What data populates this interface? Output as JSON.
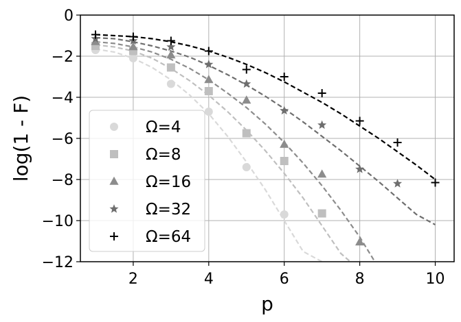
{
  "chart_data": {
    "type": "scatter",
    "xlabel": "p",
    "ylabel": "log(1 - F)",
    "xlim": [
      0.6,
      10.5
    ],
    "ylim": [
      -12,
      0
    ],
    "xticks": [
      2,
      4,
      6,
      8,
      10
    ],
    "yticks": [
      0,
      -2,
      -4,
      -6,
      -8,
      -10,
      -12
    ],
    "xtick_labels": [
      "2",
      "4",
      "6",
      "8",
      "10"
    ],
    "ytick_labels": [
      "0",
      "−2",
      "−4",
      "−6",
      "−8",
      "−10",
      "−12"
    ],
    "grid": true,
    "legend_position": "lower-left",
    "series": [
      {
        "name": "Ω=4",
        "marker": "circle",
        "color": "#d9d9d9",
        "x": [
          1,
          2,
          3,
          4,
          5,
          6
        ],
        "y": [
          -1.7,
          -2.1,
          -3.35,
          -4.7,
          -7.4,
          -9.7
        ],
        "fit": {
          "x": [
            1,
            1.5,
            2,
            2.5,
            3,
            3.5,
            4,
            4.5,
            5,
            5.5,
            6,
            6.5,
            7
          ],
          "y": [
            -1.65,
            -1.8,
            -2.1,
            -2.55,
            -3.15,
            -3.9,
            -4.8,
            -5.9,
            -7.15,
            -8.5,
            -10.0,
            -11.5,
            -12.0
          ]
        }
      },
      {
        "name": "Ω=8",
        "marker": "square",
        "color": "#bfbfbf",
        "x": [
          1,
          2,
          3,
          4,
          5,
          6,
          7
        ],
        "y": [
          -1.5,
          -1.75,
          -2.55,
          -3.7,
          -5.75,
          -7.1,
          -9.65
        ],
        "fit": {
          "x": [
            1,
            1.5,
            2,
            2.5,
            3,
            3.5,
            4,
            4.5,
            5,
            5.5,
            6,
            6.5,
            7,
            7.5,
            7.75
          ],
          "y": [
            -1.45,
            -1.55,
            -1.75,
            -2.1,
            -2.6,
            -3.2,
            -3.9,
            -4.7,
            -5.6,
            -6.6,
            -7.7,
            -8.9,
            -10.25,
            -11.6,
            -12.0
          ]
        }
      },
      {
        "name": "Ω=16",
        "marker": "triangle",
        "color": "#8c8c8c",
        "x": [
          1,
          2,
          3,
          4,
          5,
          6,
          7,
          8
        ],
        "y": [
          -1.3,
          -1.55,
          -1.95,
          -3.15,
          -4.15,
          -6.3,
          -7.75,
          -11.05
        ],
        "fit": {
          "x": [
            1,
            1.5,
            2,
            2.5,
            3,
            3.5,
            4,
            4.5,
            5,
            5.5,
            6,
            6.5,
            7,
            7.5,
            8,
            8.4
          ],
          "y": [
            -1.3,
            -1.38,
            -1.55,
            -1.8,
            -2.15,
            -2.6,
            -3.15,
            -3.8,
            -4.5,
            -5.3,
            -6.2,
            -7.2,
            -8.3,
            -9.5,
            -10.8,
            -12.0
          ]
        }
      },
      {
        "name": "Ω=32",
        "marker": "star",
        "color": "#6e6e6e",
        "x": [
          1,
          2,
          3,
          4,
          5,
          6,
          7,
          8,
          9
        ],
        "y": [
          -1.15,
          -1.25,
          -1.55,
          -2.4,
          -3.35,
          -4.65,
          -5.35,
          -7.5,
          -8.2
        ],
        "fit": {
          "x": [
            1,
            1.5,
            2,
            2.5,
            3,
            3.5,
            4,
            4.5,
            5,
            5.5,
            6,
            6.5,
            7,
            7.5,
            8,
            8.5,
            9,
            9.5,
            10
          ],
          "y": [
            -1.1,
            -1.15,
            -1.3,
            -1.5,
            -1.75,
            -2.05,
            -2.45,
            -2.9,
            -3.4,
            -3.95,
            -4.55,
            -5.2,
            -5.9,
            -6.6,
            -7.35,
            -8.1,
            -8.9,
            -9.7,
            -10.2
          ]
        }
      },
      {
        "name": "Ω=64",
        "marker": "plus",
        "color": "#000000",
        "x": [
          1,
          2,
          3,
          4,
          5,
          6,
          7,
          8,
          9,
          10
        ],
        "y": [
          -0.95,
          -1.05,
          -1.25,
          -1.75,
          -2.65,
          -3.0,
          -3.8,
          -5.15,
          -6.2,
          -8.15
        ],
        "fit": {
          "x": [
            1,
            1.5,
            2,
            2.5,
            3,
            3.5,
            4,
            4.5,
            5,
            5.5,
            6,
            6.5,
            7,
            7.5,
            8,
            8.5,
            9,
            9.5,
            10
          ],
          "y": [
            -0.95,
            -1.0,
            -1.05,
            -1.15,
            -1.3,
            -1.5,
            -1.75,
            -2.05,
            -2.4,
            -2.8,
            -3.25,
            -3.75,
            -4.25,
            -4.8,
            -5.4,
            -6.0,
            -6.65,
            -7.3,
            -8.0
          ]
        }
      }
    ]
  }
}
